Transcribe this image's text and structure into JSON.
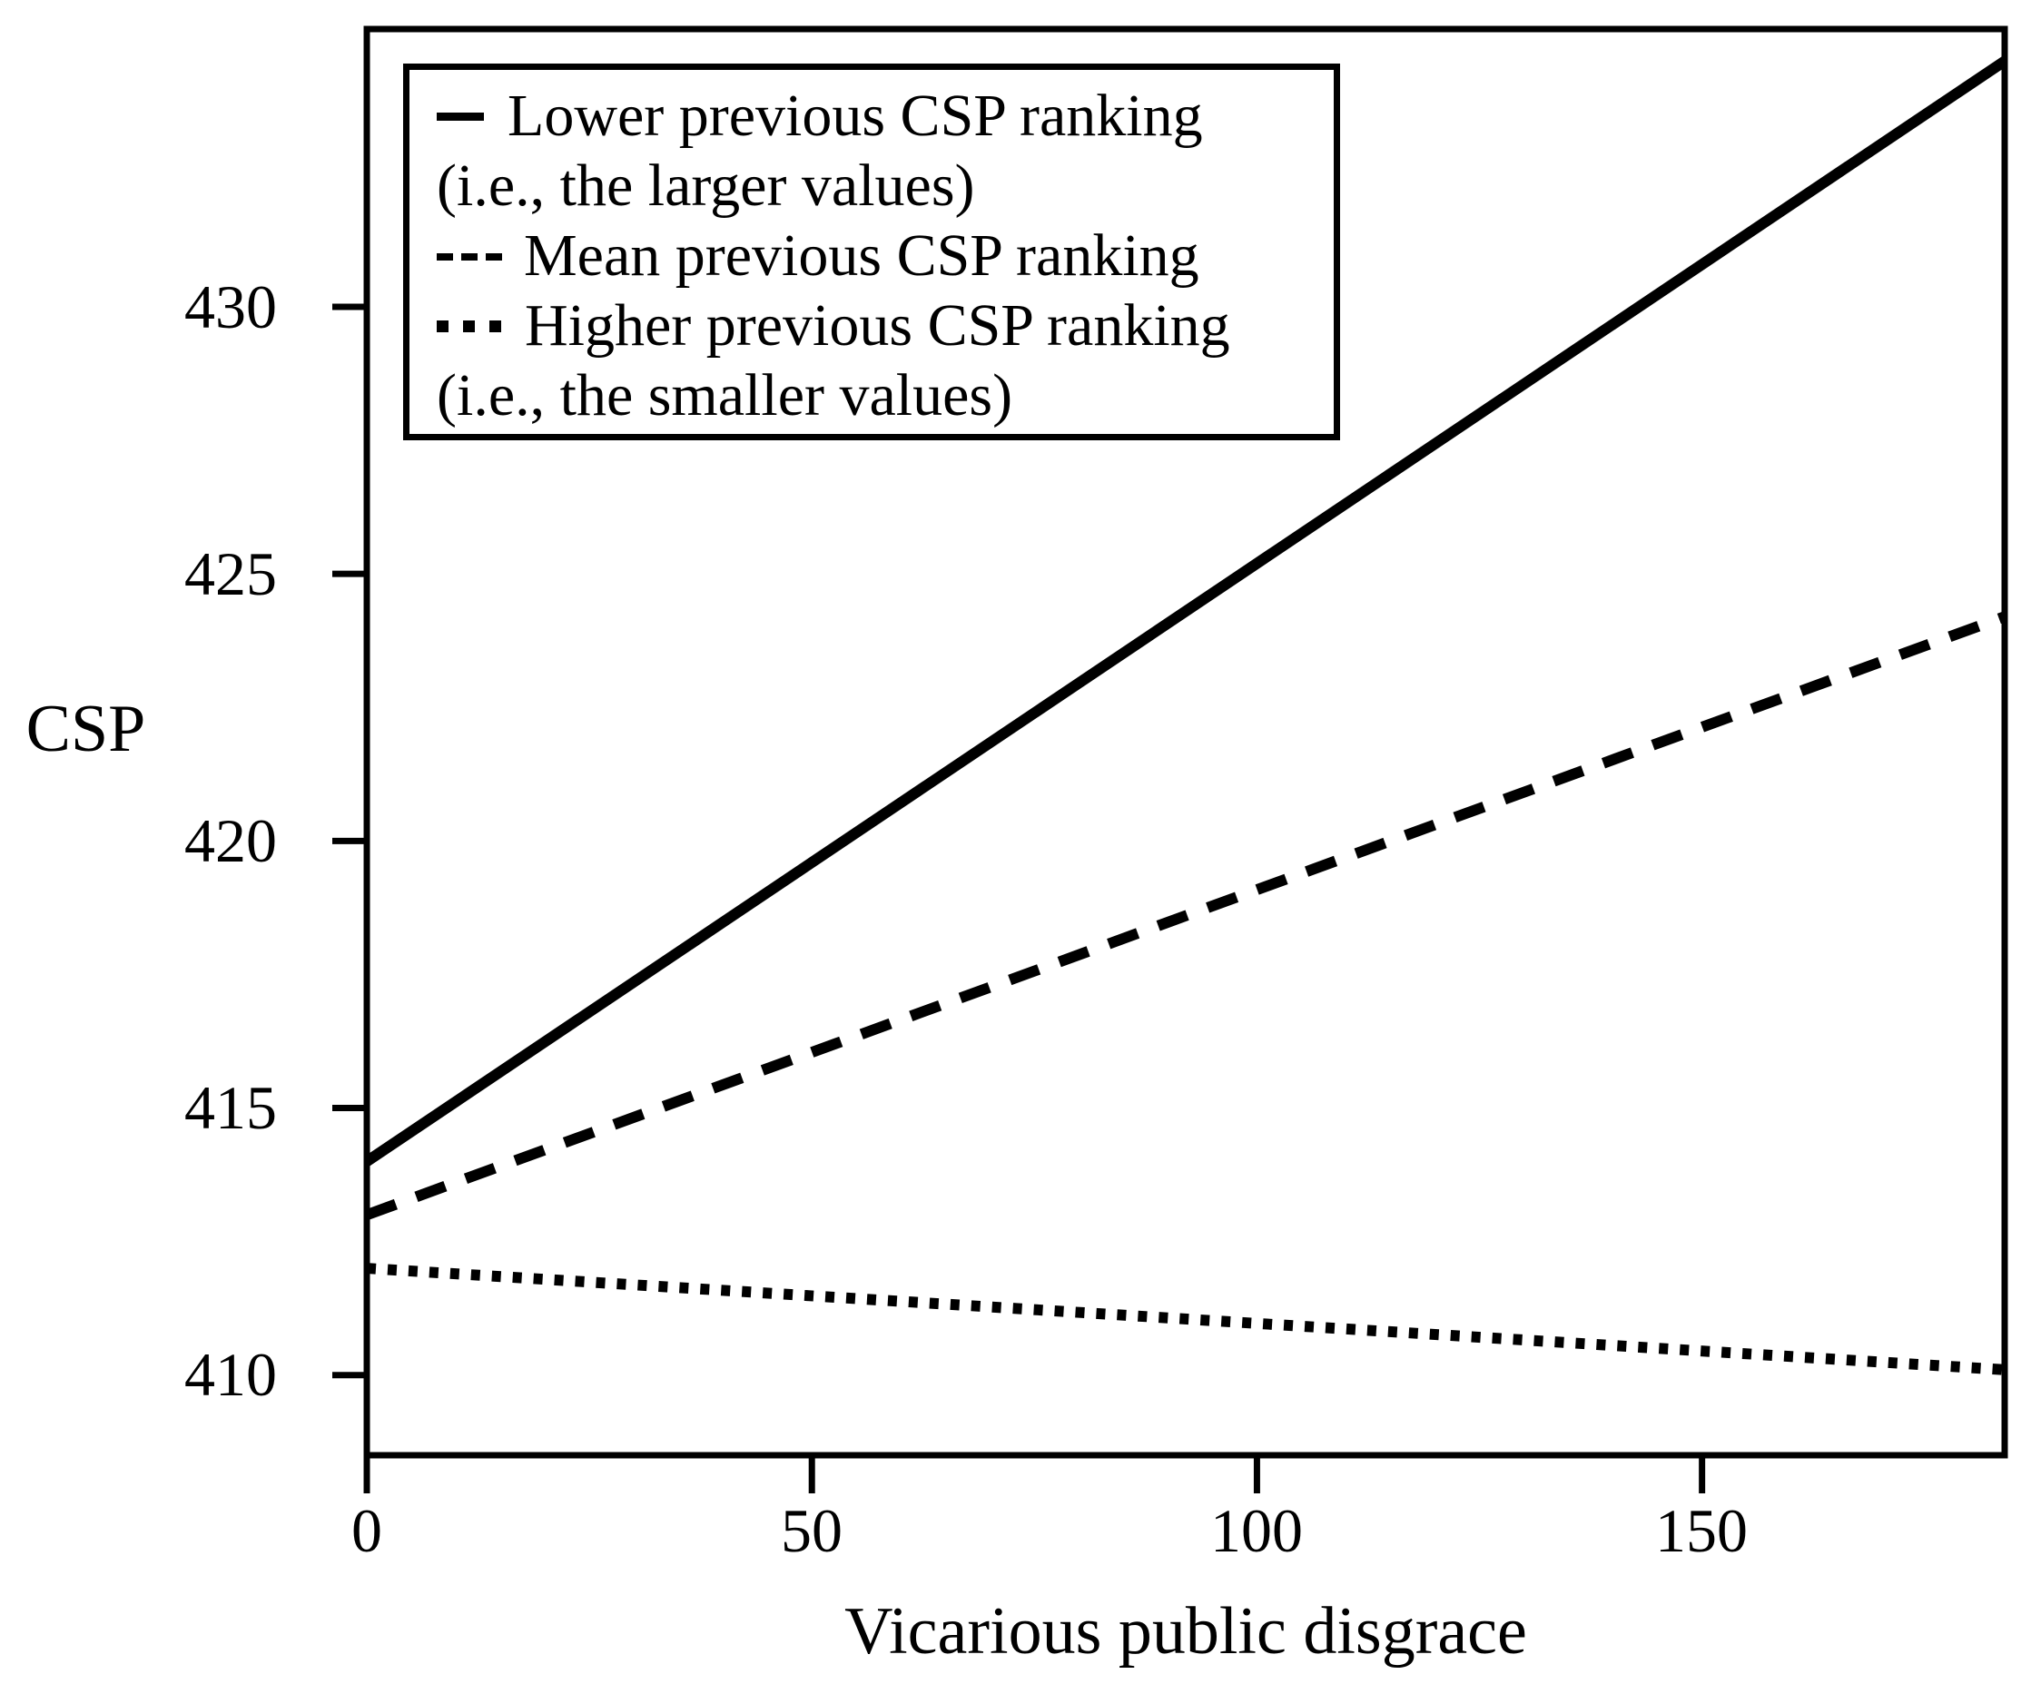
{
  "figure": {
    "background": "#ffffff",
    "ink_color": "#000000"
  },
  "y_axis": {
    "label": "CSP",
    "tick_labels": [
      "430",
      "425",
      "420",
      "415",
      "410"
    ]
  },
  "x_axis": {
    "label": "Vicarious public disgrace",
    "tick_labels": [
      "0",
      "50",
      "100",
      "150"
    ]
  },
  "legend": {
    "line1": "Lower previous CSP ranking",
    "line2": "(i.e., the larger values)",
    "line3": "Mean previous CSP ranking",
    "line4": "Higher previous CSP ranking",
    "line5": "(i.e., the smaller values)"
  },
  "chart_data": {
    "type": "line",
    "title": "",
    "xlabel": "Vicarious public disgrace",
    "ylabel": "CSP",
    "xlim": [
      0,
      184
    ],
    "ylim": [
      408.5,
      435.2
    ],
    "x_ticks": [
      0,
      50,
      100,
      150
    ],
    "y_ticks": [
      410,
      415,
      420,
      425,
      430
    ],
    "grid": false,
    "legend_position": "top-left",
    "series": [
      {
        "name": "Lower previous CSP ranking (i.e., the larger values)",
        "style": "solid",
        "x": [
          0,
          184
        ],
        "y": [
          414.0,
          434.6
        ]
      },
      {
        "name": "Mean previous CSP ranking",
        "style": "dashed",
        "x": [
          0,
          184
        ],
        "y": [
          413.0,
          424.2
        ]
      },
      {
        "name": "Higher previous CSP ranking (i.e., the smaller values)",
        "style": "dotted",
        "x": [
          0,
          184
        ],
        "y": [
          412.0,
          410.1
        ]
      }
    ]
  }
}
